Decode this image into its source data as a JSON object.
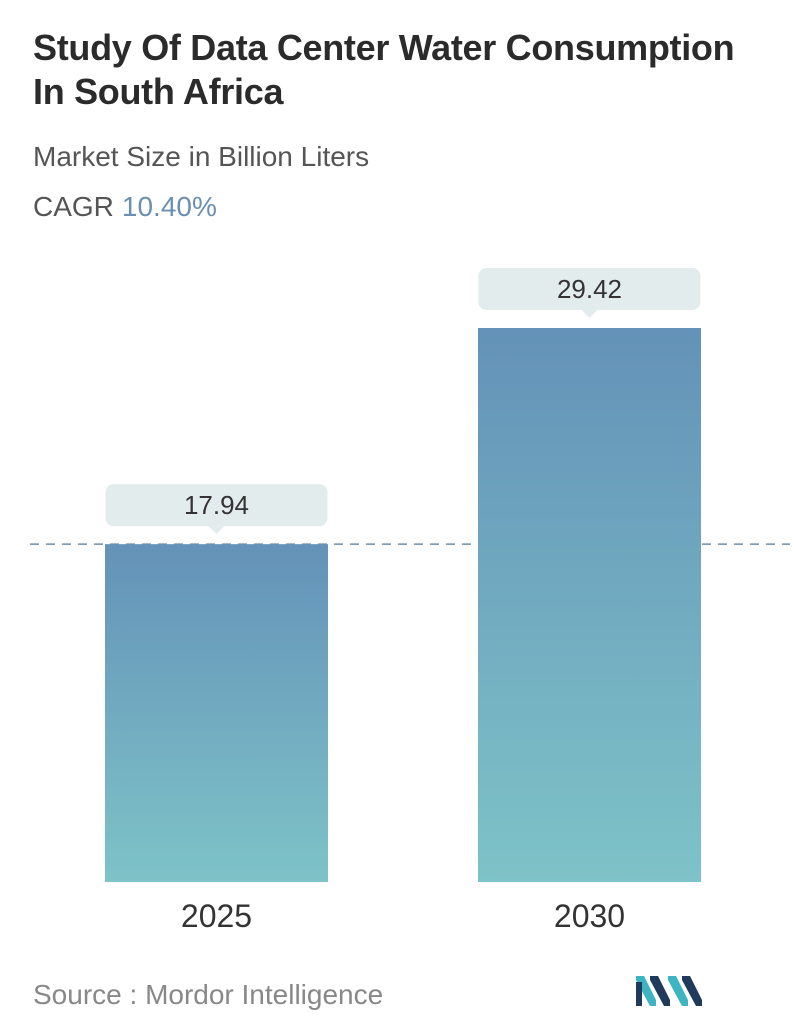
{
  "header": {
    "title": "Study Of Data Center Water Consumption In South Africa",
    "subtitle": "Market Size in Billion Liters",
    "cagr_label": "CAGR",
    "cagr_value": "10.40%"
  },
  "footer": {
    "source_label": "Source :",
    "source_name": "Mordor Intelligence"
  },
  "chart_data": {
    "type": "bar",
    "title": "Study Of Data Center Water Consumption In South Africa",
    "subtitle": "Market Size in Billion Liters",
    "categories": [
      "2025",
      "2030"
    ],
    "values": [
      17.94,
      29.42
    ],
    "value_labels": [
      "17.94",
      "29.42"
    ],
    "ylim": [
      0,
      29.42
    ],
    "grid": false,
    "reference_line_value": 17.94,
    "colors": {
      "bar_top": "#6492b8",
      "bar_bottom": "#7ec3c8",
      "label_bg": "#e3eced",
      "reference_line": "#6f8fa6"
    }
  },
  "logo": {
    "icon": "mordor-intelligence-logo",
    "colors": [
      "#1f3a5c",
      "#3db4c1"
    ]
  }
}
